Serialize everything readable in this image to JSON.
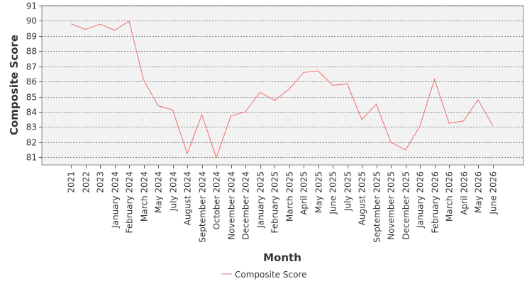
{
  "chart_data": {
    "type": "line",
    "title": "",
    "xlabel": "Month",
    "ylabel": "Composite Score",
    "ylim": [
      80.5,
      91
    ],
    "yticks": [
      81,
      82,
      83,
      84,
      85,
      86,
      87,
      88,
      89,
      90,
      91
    ],
    "grid": true,
    "legend_position": "bottom-center",
    "colors": {
      "plot_background": "#f2f2f2",
      "series_line": "#f26b6b",
      "grid": "#666666",
      "text": "#333333"
    },
    "categories": [
      "2021",
      "2022",
      "2023",
      "January 2024",
      "February 2024",
      "March 2024",
      "May 2024",
      "July 2024",
      "August 2024",
      "September 2024",
      "October 2024",
      "November 2024",
      "December 2024",
      "January 2025",
      "February 2025",
      "March 2025",
      "April 2025",
      "May 2025",
      "June 2025",
      "July 2025",
      "August 2025",
      "September 2025",
      "November 2025",
      "December 2025",
      "January 2026",
      "February 2026",
      "March 2026",
      "April 2026",
      "May 2026",
      "June 2026"
    ],
    "series": [
      {
        "name": "Composite Score",
        "values": [
          89.8,
          89.43,
          89.78,
          89.38,
          89.98,
          86.1,
          84.4,
          84.12,
          81.25,
          83.82,
          80.98,
          83.73,
          84.0,
          85.3,
          84.75,
          85.5,
          86.6,
          86.7,
          85.75,
          85.85,
          83.5,
          84.5,
          82.0,
          81.48,
          83.05,
          86.15,
          83.25,
          83.4,
          84.8,
          83.1
        ]
      }
    ]
  }
}
